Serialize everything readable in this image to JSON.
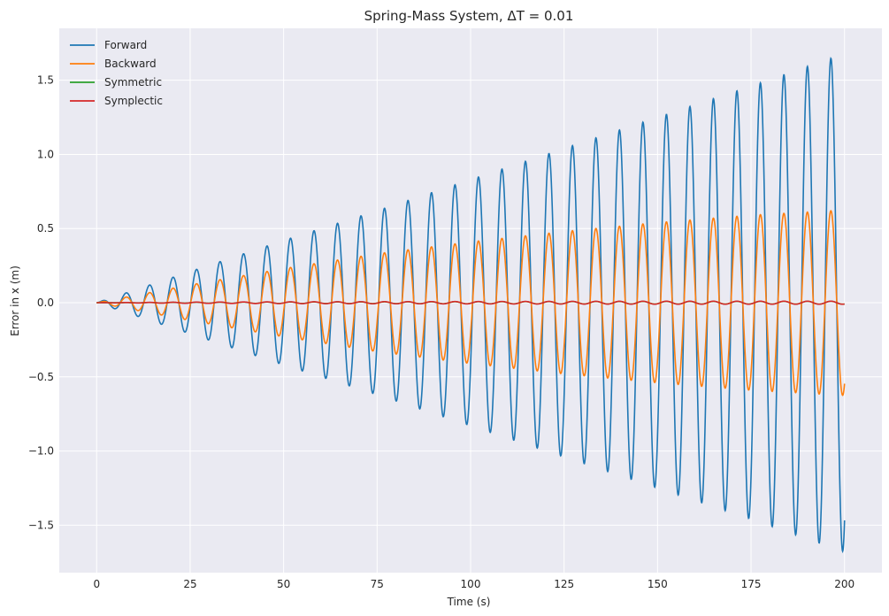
{
  "chart_data": {
    "type": "line",
    "title": "Spring-Mass System, ΔT = 0.01",
    "xlabel": "Time (s)",
    "ylabel": "Error in x (m)",
    "xlim": [
      -10,
      210
    ],
    "ylim": [
      -1.82,
      1.85
    ],
    "xticks": [
      0,
      25,
      50,
      75,
      100,
      125,
      150,
      175,
      200
    ],
    "xtick_labels": [
      "0",
      "25",
      "50",
      "75",
      "100",
      "125",
      "150",
      "175",
      "200"
    ],
    "yticks": [
      -1.5,
      -1.0,
      -0.5,
      0.0,
      0.5,
      1.0,
      1.5
    ],
    "ytick_labels": [
      "−1.5",
      "−1.0",
      "−0.5",
      "0.0",
      "0.5",
      "1.0",
      "1.5"
    ],
    "grid": true,
    "legend_position": "top-left",
    "period": 6.2832,
    "series": [
      {
        "name": "Forward",
        "color": "#1f77b4",
        "envelope": {
          "t": [
            0,
            25,
            50,
            75,
            100,
            125,
            150,
            175,
            200
          ],
          "amp": [
            0.0,
            0.21,
            0.42,
            0.62,
            0.83,
            1.04,
            1.25,
            1.46,
            1.68
          ]
        }
      },
      {
        "name": "Backward",
        "color": "#ff7f0e",
        "envelope": {
          "t": [
            0,
            25,
            50,
            75,
            100,
            125,
            150,
            175,
            200
          ],
          "amp": [
            0.0,
            0.12,
            0.23,
            0.33,
            0.41,
            0.48,
            0.54,
            0.59,
            0.625
          ]
        }
      },
      {
        "name": "Symmetric",
        "color": "#2ca02c",
        "envelope": {
          "t": [
            0,
            25,
            50,
            75,
            100,
            125,
            150,
            175,
            200
          ],
          "amp": [
            0.0,
            0.003,
            0.005,
            0.006,
            0.007,
            0.008,
            0.009,
            0.009,
            0.01
          ]
        }
      },
      {
        "name": "Symplectic",
        "color": "#d62728",
        "envelope": {
          "t": [
            0,
            25,
            50,
            75,
            100,
            125,
            150,
            175,
            200
          ],
          "amp": [
            0.0,
            0.004,
            0.006,
            0.007,
            0.008,
            0.009,
            0.01,
            0.01,
            0.01
          ]
        }
      }
    ]
  }
}
